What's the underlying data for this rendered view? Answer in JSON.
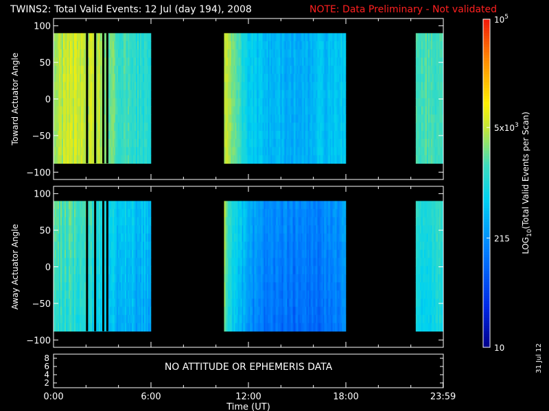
{
  "title": "TWINS2: Total Valid Events: 12 Jul (day 194), 2008",
  "note": "NOTE: Data Preliminary - Not validated",
  "generated_date": "31 Jul 12",
  "colors": {
    "background": "#000000",
    "note": "#ff2020",
    "frame": "#ffffff"
  },
  "chart_data": [
    {
      "type": "heatmap",
      "name": "toward",
      "ylabel": "Toward Actuator Angle",
      "ylim": [
        -110,
        110
      ],
      "yticks": [
        100,
        50,
        0,
        -50,
        -100
      ],
      "xlim": [
        0,
        24
      ],
      "data_y_range": [
        -88,
        90
      ],
      "coverage": [
        [
          0,
          6
        ],
        [
          10.5,
          18
        ],
        [
          22.3,
          24
        ]
      ],
      "profile": [
        [
          0,
          0.66
        ],
        [
          2,
          0.68
        ],
        [
          3,
          0.62
        ],
        [
          4,
          0.55
        ],
        [
          6,
          0.5
        ],
        [
          10.5,
          0.66
        ],
        [
          11,
          0.58
        ],
        [
          12,
          0.44
        ],
        [
          13,
          0.4
        ],
        [
          15,
          0.38
        ],
        [
          16,
          0.4
        ],
        [
          18,
          0.43
        ],
        [
          22.3,
          0.56
        ],
        [
          24,
          0.55
        ]
      ],
      "gaps": [
        2.0,
        2.5,
        3.0,
        3.25
      ]
    },
    {
      "type": "heatmap",
      "name": "away",
      "ylabel": "Away Actuator Angle",
      "ylim": [
        -110,
        110
      ],
      "yticks": [
        100,
        50,
        0,
        -50,
        -100
      ],
      "xlim": [
        0,
        24
      ],
      "data_y_range": [
        -88,
        90
      ],
      "coverage": [
        [
          0,
          6
        ],
        [
          10.5,
          18
        ],
        [
          22.3,
          24
        ]
      ],
      "profile": [
        [
          0,
          0.58
        ],
        [
          2,
          0.55
        ],
        [
          3,
          0.5
        ],
        [
          4,
          0.44
        ],
        [
          6,
          0.42
        ],
        [
          10.5,
          0.62
        ],
        [
          11,
          0.5
        ],
        [
          12,
          0.38
        ],
        [
          13,
          0.33
        ],
        [
          15,
          0.3
        ],
        [
          16,
          0.31
        ],
        [
          18,
          0.36
        ],
        [
          22.3,
          0.52
        ],
        [
          24,
          0.52
        ]
      ],
      "gaps": [
        2.0,
        2.5,
        3.0,
        3.25
      ]
    },
    {
      "type": "table",
      "name": "attitude",
      "annotation": "NO ATTITUDE OR EPHEMERIS DATA",
      "yticks": [
        "8",
        "6",
        "4",
        "2"
      ],
      "xlabel": "Time (UT)",
      "xticks": [
        {
          "v": 0,
          "label": "0:00"
        },
        {
          "v": 6,
          "label": "6:00"
        },
        {
          "v": 12,
          "label": "12:00"
        },
        {
          "v": 18,
          "label": "18:00"
        },
        {
          "v": 23.983,
          "label": "23:59"
        }
      ]
    }
  ],
  "colorbar": {
    "label_main": "LOG",
    "label_sub": "10",
    "label_rest": "(Total Valid Events per Scan)",
    "ticks": [
      {
        "label": "10",
        "frac": 0.0
      },
      {
        "label": "215",
        "frac": 0.333
      },
      {
        "label": "5x10",
        "sup": "3",
        "frac": 0.67
      },
      {
        "label": "10",
        "sup": "5",
        "frac": 1.0
      }
    ]
  }
}
